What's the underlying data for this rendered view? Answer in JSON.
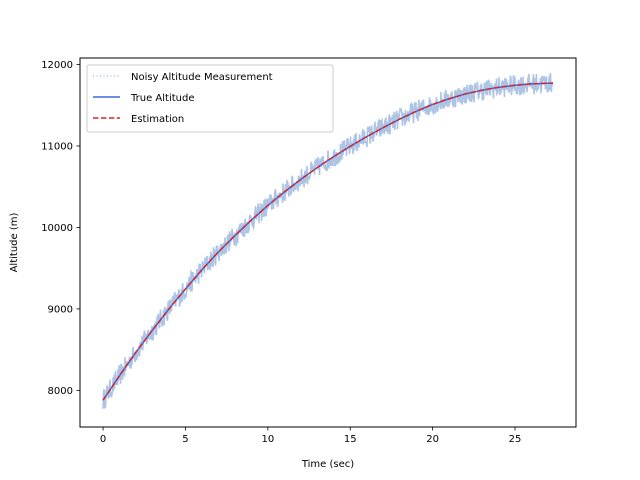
{
  "chart_data": {
    "type": "line",
    "title": "",
    "xlabel": "Time (sec)",
    "ylabel": "Altitude (m)",
    "xlim": [
      -1.4,
      28.7
    ],
    "ylim": [
      7550,
      12080
    ],
    "xticks": [
      0,
      5,
      10,
      15,
      20,
      25
    ],
    "yticks": [
      8000,
      9000,
      10000,
      11000,
      12000
    ],
    "grid": false,
    "legend_position": "top-left",
    "x": [
      0,
      1,
      2,
      3,
      4,
      5,
      6,
      7,
      8,
      9,
      10,
      11,
      12,
      13,
      14,
      15,
      16,
      17,
      18,
      19,
      20,
      21,
      22,
      23,
      24,
      25,
      26,
      27,
      27.3
    ],
    "series": [
      {
        "name": "Noisy Altitude Measurement",
        "style": "dotted",
        "color": "#a9c1e4",
        "noise_band": 130,
        "values": [
          7880,
          8180,
          8470,
          8740,
          9000,
          9245,
          9480,
          9700,
          9900,
          10090,
          10270,
          10435,
          10590,
          10735,
          10870,
          10995,
          11115,
          11225,
          11330,
          11425,
          11510,
          11580,
          11640,
          11685,
          11720,
          11745,
          11762,
          11770,
          11772
        ]
      },
      {
        "name": "True Altitude",
        "style": "solid",
        "color": "#4169e1",
        "values": [
          7880,
          8180,
          8470,
          8740,
          9000,
          9245,
          9480,
          9700,
          9900,
          10090,
          10270,
          10435,
          10590,
          10735,
          10870,
          10995,
          11115,
          11225,
          11330,
          11425,
          11510,
          11580,
          11640,
          11685,
          11720,
          11745,
          11762,
          11770,
          11772
        ]
      },
      {
        "name": "Estimation",
        "style": "dashed",
        "color": "#d62728",
        "values": [
          7880,
          8180,
          8470,
          8740,
          9000,
          9245,
          9480,
          9700,
          9900,
          10090,
          10270,
          10435,
          10590,
          10735,
          10870,
          10995,
          11115,
          11225,
          11330,
          11425,
          11510,
          11580,
          11640,
          11685,
          11720,
          11745,
          11762,
          11770,
          11772
        ]
      }
    ]
  }
}
